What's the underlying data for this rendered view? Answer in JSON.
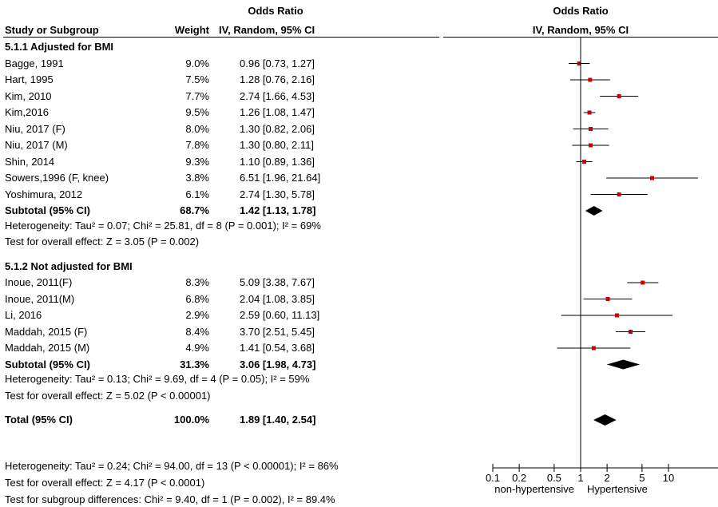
{
  "header": {
    "or_top": "Odds Ratio",
    "col_study": "Study or Subgroup",
    "col_weight": "Weight",
    "col_method": "IV, Random, 95% CI",
    "plot_top": "Odds Ratio",
    "plot_method": "IV, Random, 95% CI"
  },
  "groups": [
    {
      "title": "5.1.1 Adjusted for BMI",
      "studies": [
        {
          "name": "Bagge, 1991",
          "weight": "9.0%",
          "ci": "0.96 [0.73, 1.27]",
          "or": 0.96,
          "lo": 0.73,
          "hi": 1.27
        },
        {
          "name": "Hart, 1995",
          "weight": "7.5%",
          "ci": "1.28 [0.76, 2.16]",
          "or": 1.28,
          "lo": 0.76,
          "hi": 2.16
        },
        {
          "name": "Kim, 2010",
          "weight": "7.7%",
          "ci": "2.74 [1.66, 4.53]",
          "or": 2.74,
          "lo": 1.66,
          "hi": 4.53
        },
        {
          "name": "Kim,2016",
          "weight": "9.5%",
          "ci": "1.26 [1.08, 1.47]",
          "or": 1.26,
          "lo": 1.08,
          "hi": 1.47
        },
        {
          "name": "Niu, 2017 (F)",
          "weight": "8.0%",
          "ci": "1.30 [0.82, 2.06]",
          "or": 1.3,
          "lo": 0.82,
          "hi": 2.06
        },
        {
          "name": "Niu, 2017 (M)",
          "weight": "7.8%",
          "ci": "1.30 [0.80, 2.11]",
          "or": 1.3,
          "lo": 0.8,
          "hi": 2.11
        },
        {
          "name": "Shin, 2014",
          "weight": "9.3%",
          "ci": "1.10 [0.89, 1.36]",
          "or": 1.1,
          "lo": 0.89,
          "hi": 1.36
        },
        {
          "name": "Sowers,1996 (F, knee)",
          "weight": "3.8%",
          "ci": "6.51 [1.96, 21.64]",
          "or": 6.51,
          "lo": 1.96,
          "hi": 21.64
        },
        {
          "name": "Yoshimura, 2012",
          "weight": "6.1%",
          "ci": "2.74 [1.30, 5.78]",
          "or": 2.74,
          "lo": 1.3,
          "hi": 5.78
        }
      ],
      "subtotal": {
        "label": "Subtotal (95% CI)",
        "weight": "68.7%",
        "ci": "1.42 [1.13, 1.78]",
        "or": 1.42,
        "lo": 1.13,
        "hi": 1.78
      },
      "heterogeneity": "Heterogeneity: Tau² = 0.07; Chi² = 25.81, df = 8 (P = 0.001); I² = 69%",
      "overall": "Test for overall effect: Z = 3.05 (P = 0.002)"
    },
    {
      "title": "5.1.2 Not adjusted for BMI",
      "studies": [
        {
          "name": "Inoue, 2011(F)",
          "weight": "8.3%",
          "ci": "5.09 [3.38, 7.67]",
          "or": 5.09,
          "lo": 3.38,
          "hi": 7.67
        },
        {
          "name": "Inoue, 2011(M)",
          "weight": "6.8%",
          "ci": "2.04 [1.08, 3.85]",
          "or": 2.04,
          "lo": 1.08,
          "hi": 3.85
        },
        {
          "name": "Li, 2016",
          "weight": "2.9%",
          "ci": "2.59 [0.60, 11.13]",
          "or": 2.59,
          "lo": 0.6,
          "hi": 11.13
        },
        {
          "name": "Maddah, 2015 (F)",
          "weight": "8.4%",
          "ci": "3.70 [2.51, 5.45]",
          "or": 3.7,
          "lo": 2.51,
          "hi": 5.45
        },
        {
          "name": "Maddah, 2015 (M)",
          "weight": "4.9%",
          "ci": "1.41 [0.54, 3.68]",
          "or": 1.41,
          "lo": 0.54,
          "hi": 3.68
        }
      ],
      "subtotal": {
        "label": "Subtotal (95% CI)",
        "weight": "31.3%",
        "ci": "3.06 [1.98, 4.73]",
        "or": 3.06,
        "lo": 1.98,
        "hi": 4.73
      },
      "heterogeneity": "Heterogeneity: Tau² = 0.13; Chi² = 9.69, df = 4 (P = 0.05); I² = 59%",
      "overall": "Test for overall effect: Z = 5.02 (P < 0.00001)"
    }
  ],
  "total": {
    "label": "Total (95% CI)",
    "weight": "100.0%",
    "ci": "1.89 [1.40, 2.54]",
    "or": 1.89,
    "lo": 1.4,
    "hi": 2.54,
    "heterogeneity": "Heterogeneity: Tau² = 0.24; Chi² = 94.00, df = 13 (P < 0.00001); I² = 86%",
    "overall": "Test for overall effect: Z = 4.17 (P < 0.0001)",
    "subgroup": "Test for subgroup differences: Chi² = 9.40, df = 1 (P = 0.002), I² = 89.4%"
  },
  "axis": {
    "ticks": [
      0.1,
      0.2,
      0.5,
      1,
      2,
      5,
      10
    ],
    "tick_labels": [
      "0.1",
      "0.2",
      "0.5",
      "1",
      "2",
      "5",
      "10"
    ],
    "label_left": "non-hypertensive",
    "label_right": "Hypertensive"
  },
  "chart_data": {
    "type": "forest",
    "scale": "log",
    "xlim": [
      0.1,
      10
    ],
    "marker_color": "#cc0000",
    "x_tick_labels": [
      "0.1",
      "0.2",
      "0.5",
      "1",
      "2",
      "5",
      "10"
    ],
    "favours": [
      "non-hypertensive",
      "Hypertensive"
    ]
  }
}
